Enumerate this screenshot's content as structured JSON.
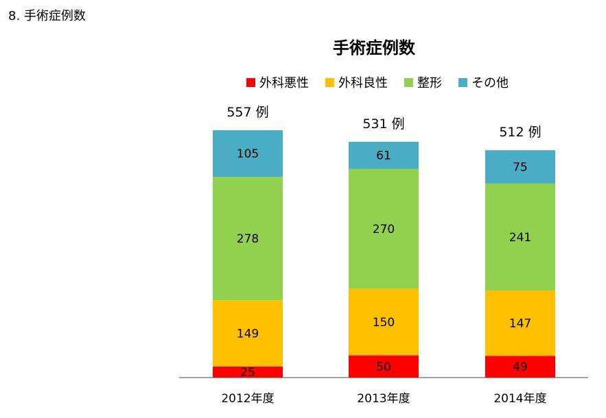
{
  "page": {
    "heading": "8. 手術症例数"
  },
  "chart_data": {
    "type": "bar",
    "stacked": true,
    "title": "手術症例数",
    "categories": [
      "2012年度",
      "2013年度",
      "2014年度"
    ],
    "totals": [
      "557 例",
      "531 例",
      "512 例"
    ],
    "series": [
      {
        "name": "外科悪性",
        "color": "#ff0000",
        "values": [
          25,
          50,
          49
        ]
      },
      {
        "name": "外科良性",
        "color": "#ffc000",
        "values": [
          149,
          150,
          147
        ]
      },
      {
        "name": "整形",
        "color": "#92d050",
        "values": [
          278,
          270,
          241
        ]
      },
      {
        "name": "その他",
        "color": "#4bacc6",
        "values": [
          105,
          61,
          75
        ]
      }
    ],
    "legend_position": "top",
    "grid": false
  }
}
